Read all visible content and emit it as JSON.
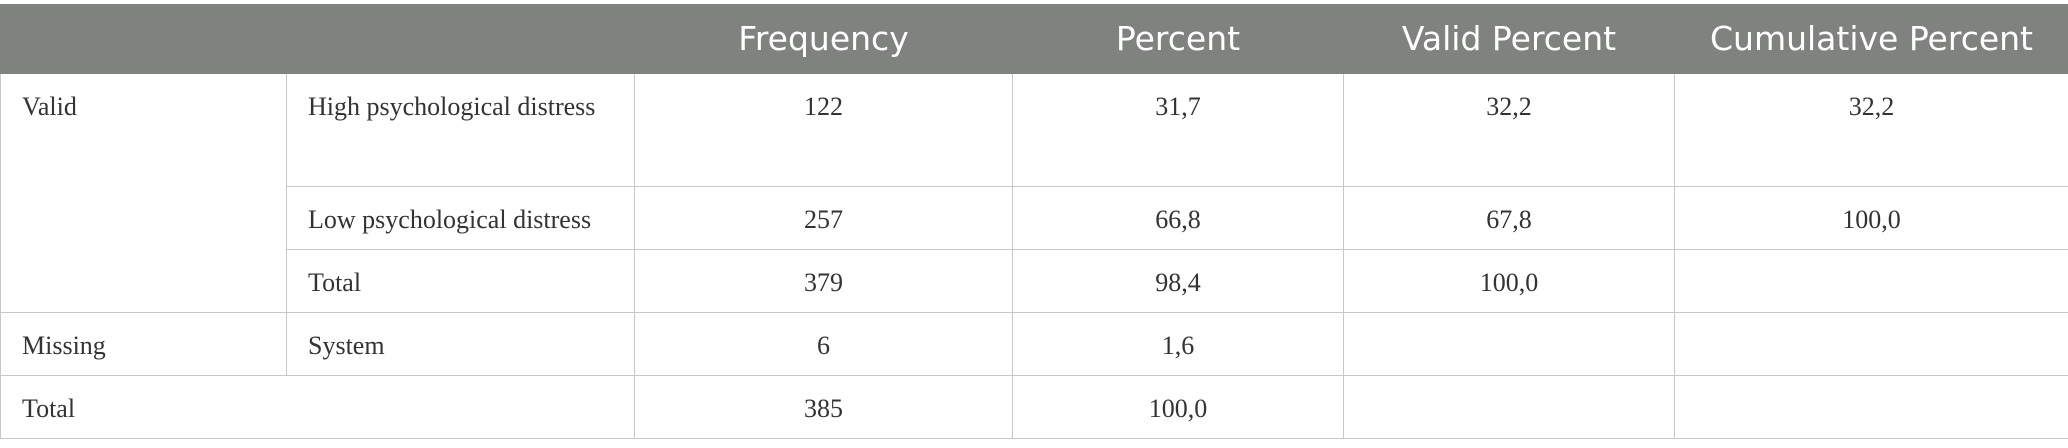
{
  "table": {
    "header": [
      "Frequency",
      "Percent",
      "Valid Percent",
      "Cumulative Percent"
    ],
    "groups": [
      {
        "label": "Valid",
        "rows": [
          {
            "label": "High psychological distress",
            "cells": [
              "122",
              "31,7",
              "32,2",
              "32,2"
            ]
          },
          {
            "label": "Low psychological distress",
            "cells": [
              "257",
              "66,8",
              "67,8",
              "100,0"
            ]
          },
          {
            "label": "Total",
            "cells": [
              "379",
              "98,4",
              "100,0"
            ]
          }
        ]
      },
      {
        "label": "Missing",
        "rows": [
          {
            "label": "System",
            "cells": [
              "6",
              "1,6"
            ]
          }
        ]
      }
    ],
    "total": {
      "label": "Total",
      "cells": [
        "385",
        "100,0"
      ]
    }
  }
}
